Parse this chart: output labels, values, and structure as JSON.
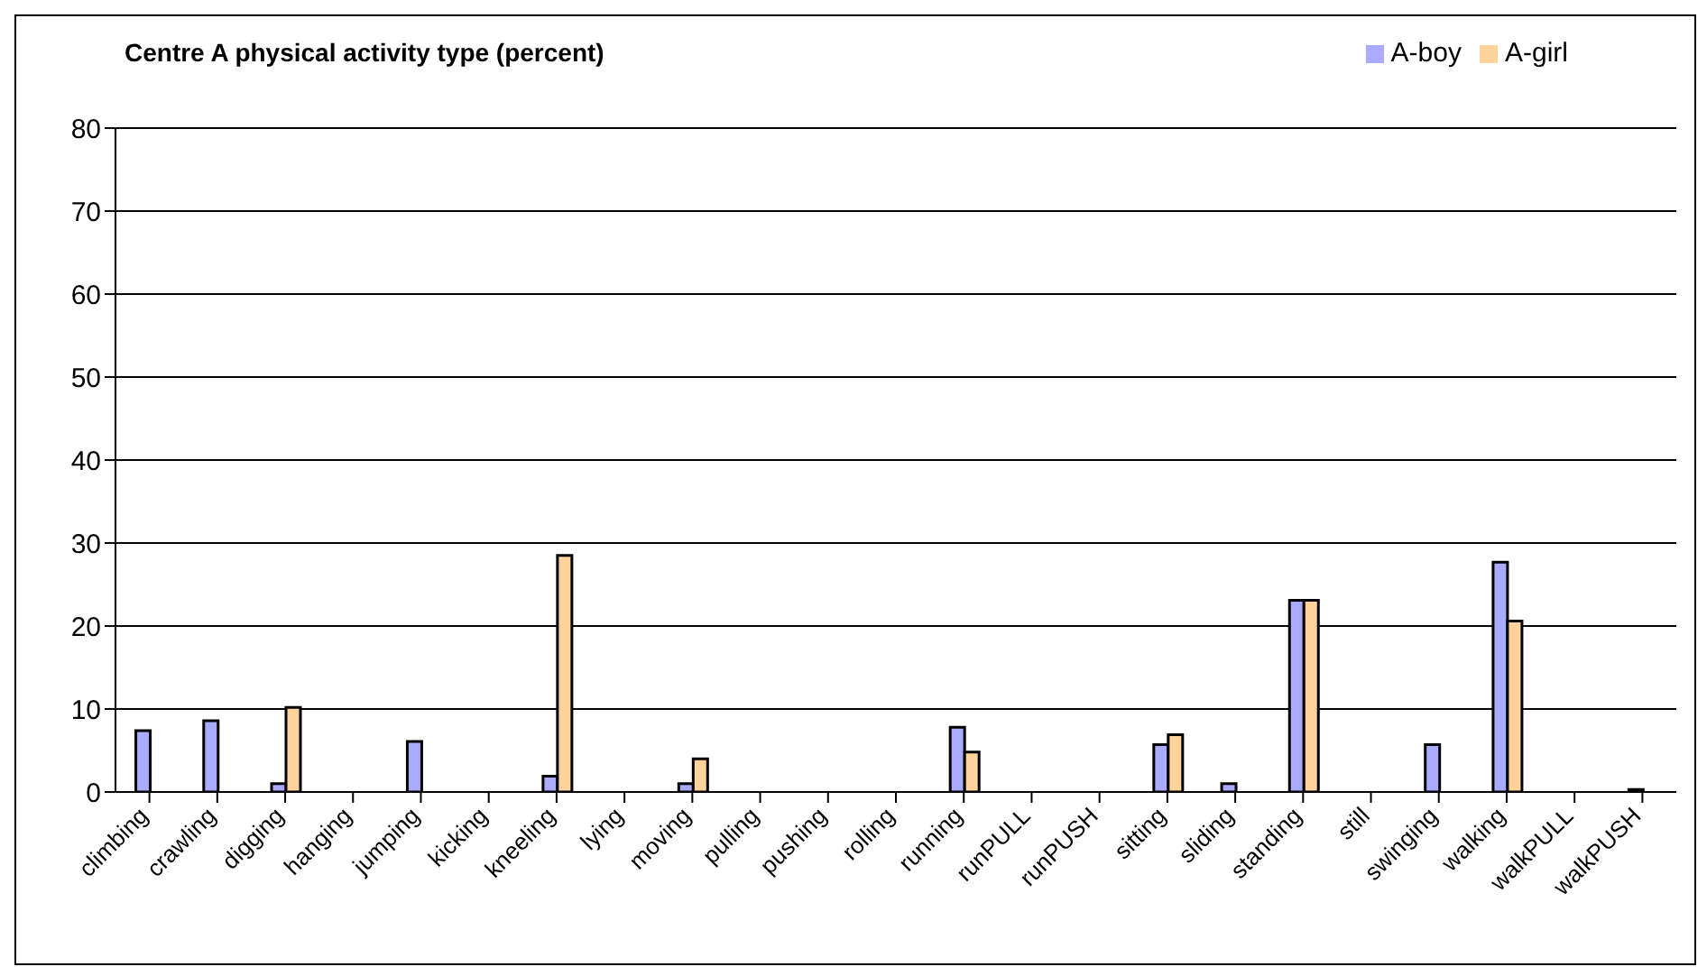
{
  "chart_data": {
    "type": "bar",
    "title": "Centre A  physical activity type (percent)",
    "categories": [
      "climbing",
      "crawling",
      "digging",
      "hanging",
      "jumping",
      "kicking",
      "kneeling",
      "lying",
      "moving",
      "pulling",
      "pushing",
      "rolling",
      "running",
      "runPULL",
      "runPUSH",
      "sitting",
      "sliding",
      "standing",
      "still",
      "swinging",
      "walking",
      "walkPULL",
      "walkPUSH"
    ],
    "series": [
      {
        "name": "A-boy",
        "color": "#aaaaff",
        "values": [
          7.4,
          8.6,
          1.0,
          0,
          6.1,
          0,
          1.9,
          0,
          1.0,
          0,
          0,
          0,
          7.8,
          0,
          0,
          5.7,
          1.0,
          23.1,
          0,
          5.7,
          27.7,
          0,
          0.3
        ]
      },
      {
        "name": "A-girl",
        "color": "#ffd39b",
        "values": [
          0,
          0,
          10.2,
          0,
          0,
          0,
          28.5,
          0,
          4.0,
          0,
          0,
          0,
          4.8,
          0,
          0,
          6.9,
          0,
          23.1,
          0,
          0,
          20.6,
          0,
          0
        ]
      }
    ],
    "ylim": [
      0,
      80
    ],
    "yticks": [
      0,
      10,
      20,
      30,
      40,
      50,
      60,
      70,
      80
    ],
    "grid": "y",
    "legend": "top right"
  }
}
